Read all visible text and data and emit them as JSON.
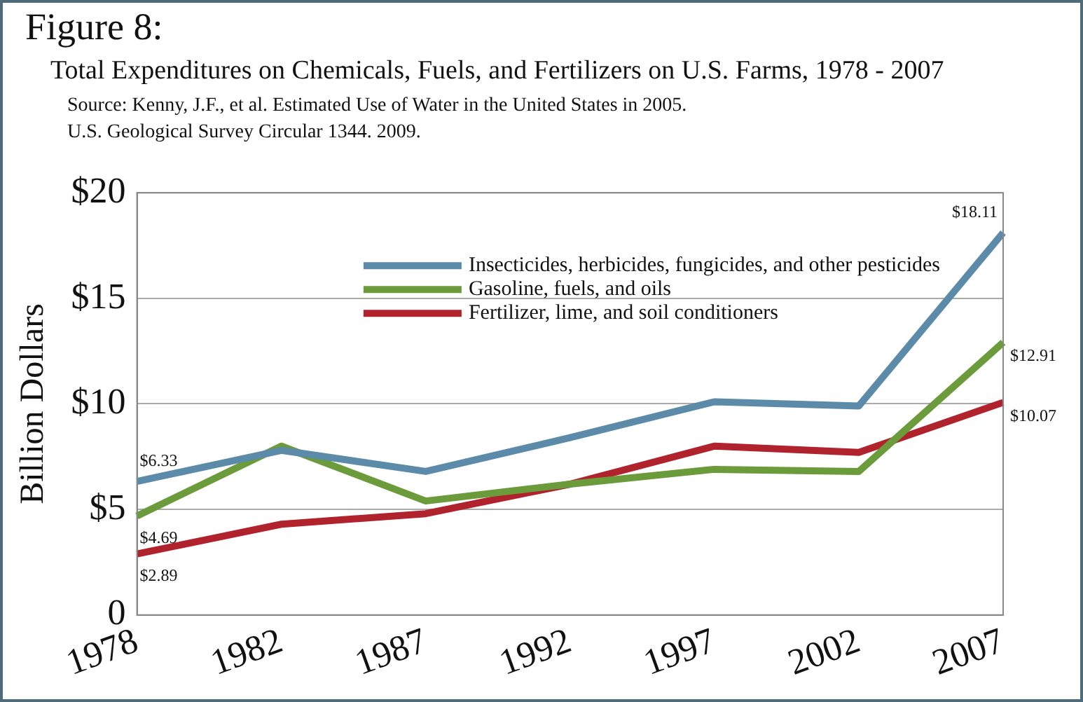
{
  "chart_data": {
    "type": "line",
    "title": "Figure 8:",
    "subtitle": "Total Expenditures on Chemicals, Fuels, and Fertilizers on U.S. Farms, 1978 - 2007",
    "annotations": [
      "Source: Kenny, J.F., et al.  Estimated Use of Water in the United States in 2005.",
      "U.S. Geological Survey Circular 1344. 2009."
    ],
    "ylabel": "Billion Dollars",
    "categories": [
      "1978",
      "1982",
      "1987",
      "1992",
      "1997",
      "2002",
      "2007"
    ],
    "series": [
      {
        "name": "Insecticides, herbicides, fungicides, and other pesticides",
        "color": "#5b8ba8",
        "values": [
          6.33,
          7.8,
          6.8,
          8.4,
          10.1,
          9.9,
          18.11
        ],
        "value_labels": [
          "$6.33",
          null,
          null,
          null,
          null,
          null,
          "$18.11"
        ]
      },
      {
        "name": "Gasoline, fuels, and oils",
        "color": "#6b9b3a",
        "values": [
          4.69,
          8.0,
          5.4,
          6.2,
          6.9,
          6.8,
          12.91
        ],
        "value_labels": [
          "$4.69",
          null,
          null,
          null,
          null,
          null,
          "$12.91"
        ]
      },
      {
        "name": "Fertilizer, lime, and soil conditioners",
        "color": "#b0222c",
        "values": [
          2.89,
          4.3,
          4.8,
          6.2,
          8.0,
          7.7,
          10.07
        ],
        "value_labels": [
          "$2.89",
          null,
          null,
          null,
          null,
          null,
          "$10.07"
        ]
      }
    ],
    "ylim": [
      0,
      20
    ],
    "yticks": [
      {
        "value": 0,
        "label": "0"
      },
      {
        "value": 5,
        "label": "$5"
      },
      {
        "value": 10,
        "label": "$10"
      },
      {
        "value": 15,
        "label": "$15"
      },
      {
        "value": 20,
        "label": "$20"
      }
    ],
    "grid": "y",
    "legend": "top right",
    "marker": "none",
    "line_style": "solid"
  }
}
